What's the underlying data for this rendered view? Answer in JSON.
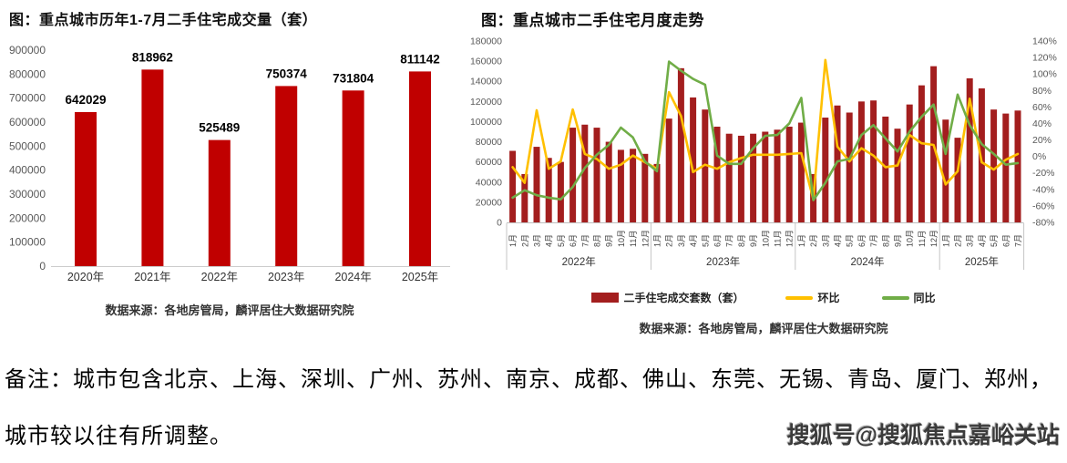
{
  "page": {
    "note_line1": "备注：城市包含北京、上海、深圳、广州、苏州、南京、成都、佛山、东莞、无锡、青岛、厦门、郑州，",
    "note_line2": "城市较以往有所调整。",
    "watermark": "搜狐号@搜狐焦点嘉峪关站"
  },
  "colors": {
    "bar_red_left": "#C00000",
    "bar_red_right": "#A31E1E",
    "mom_yellow": "#FFC000",
    "yoy_green": "#70AD47",
    "axis_text": "#595959",
    "grid_gray": "#C5C5C5"
  },
  "chart_data": [
    {
      "type": "bar",
      "title": "图：重点城市历年1-7月二手住宅成交量（套）",
      "source": "数据来源：各地房管局，麟评居住大数据研究院",
      "categories": [
        "2020年",
        "2021年",
        "2022年",
        "2023年",
        "2024年",
        "2025年"
      ],
      "values": [
        642029,
        818962,
        525489,
        750374,
        731804,
        811142
      ],
      "bar_color": "#C00000",
      "ylim": [
        0,
        900000
      ],
      "ytick_step": 100000,
      "yticks": [
        "0",
        "100000",
        "200000",
        "300000",
        "400000",
        "500000",
        "600000",
        "700000",
        "800000",
        "900000"
      ],
      "grid": false,
      "data_labels": true,
      "legend_position": "none"
    },
    {
      "type": "combo-bar-line",
      "title": "图：重点城市二手住宅月度走势",
      "source": "数据来源：各地房管局，麟评居住大数据研究院",
      "categories": [
        "1月",
        "2月",
        "3月",
        "4月",
        "5月",
        "6月",
        "7月",
        "8月",
        "9月",
        "10月",
        "11月",
        "12月",
        "1月",
        "2月",
        "3月",
        "4月",
        "5月",
        "6月",
        "7月",
        "8月",
        "9月",
        "10月",
        "11月",
        "12月",
        "1月",
        "2月",
        "3月",
        "4月",
        "5月",
        "6月",
        "7月",
        "8月",
        "9月",
        "10月",
        "11月",
        "12月",
        "1月",
        "2月",
        "3月",
        "4月",
        "5月",
        "6月",
        "7月"
      ],
      "year_groups": [
        {
          "label": "2022年",
          "months": 12
        },
        {
          "label": "2023年",
          "months": 12
        },
        {
          "label": "2024年",
          "months": 12
        },
        {
          "label": "2025年",
          "months": 7
        }
      ],
      "series": [
        {
          "name": "二手住宅成交套数（套）",
          "type": "bar",
          "axis": "left",
          "color": "#A31E1E",
          "values": [
            71000,
            48000,
            75000,
            64000,
            60000,
            94000,
            97000,
            94000,
            80000,
            72000,
            73000,
            68000,
            58000,
            103000,
            153000,
            124000,
            112000,
            95000,
            88000,
            86000,
            88000,
            90000,
            92000,
            95000,
            99000,
            48000,
            104000,
            116000,
            109000,
            120000,
            121000,
            105000,
            93000,
            117000,
            136000,
            155000,
            102000,
            84000,
            143000,
            133000,
            112000,
            108000,
            111000
          ]
        },
        {
          "name": "环比",
          "type": "line",
          "axis": "right",
          "color": "#FFC000",
          "values": [
            -13,
            -32,
            56,
            -15,
            -6,
            57,
            3,
            -3,
            -15,
            -10,
            1,
            -7,
            -15,
            78,
            49,
            -19,
            -10,
            -15,
            -7,
            -2,
            2,
            2,
            2,
            3,
            4,
            -52,
            117,
            12,
            -6,
            10,
            1,
            -13,
            -11,
            26,
            16,
            14,
            -34,
            -18,
            70,
            -7,
            -16,
            -4,
            3
          ]
        },
        {
          "name": "同比",
          "type": "line",
          "axis": "right",
          "color": "#70AD47",
          "values": [
            -50,
            -41,
            -47,
            -50,
            -52,
            -37,
            -14,
            2,
            14,
            35,
            23,
            -6,
            -18,
            115,
            104,
            94,
            87,
            1,
            -9,
            -9,
            10,
            25,
            26,
            40,
            71,
            -53,
            -32,
            -6,
            -3,
            26,
            38,
            22,
            6,
            30,
            48,
            63,
            3,
            75,
            38,
            15,
            3,
            -10,
            -8
          ]
        }
      ],
      "left_ylim": [
        0,
        180000
      ],
      "left_yticks": [
        "0",
        "20000",
        "40000",
        "60000",
        "80000",
        "100000",
        "120000",
        "140000",
        "160000",
        "180000"
      ],
      "right_ylim": [
        -80,
        140
      ],
      "right_yticks": [
        "140%",
        "120%",
        "100%",
        "80%",
        "60%",
        "40%",
        "20%",
        "0%",
        "-20%",
        "-40%",
        "-60%",
        "-80%"
      ],
      "grid": false,
      "legend_position": "bottom"
    }
  ]
}
